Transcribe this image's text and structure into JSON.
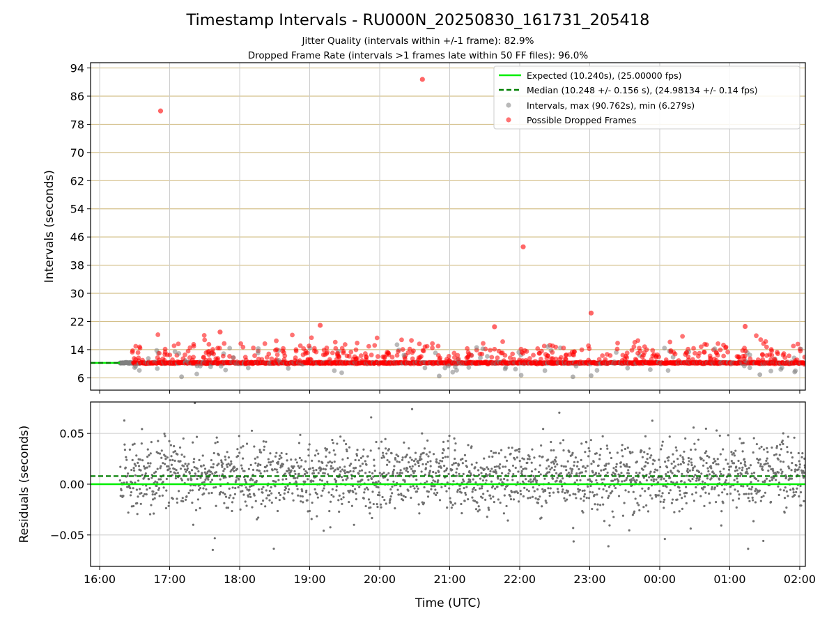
{
  "chart_data": {
    "type": "scatter",
    "title": "Timestamp Intervals - RU000N_20250830_161731_205418",
    "subtitle_lines": [
      "Jitter Quality (intervals within +/-1 frame): 82.9%",
      "Dropped Frame Rate (intervals >1 frames late within 50 FF files): 96.0%"
    ],
    "xlabel": "Time (UTC)",
    "x_tick_labels": [
      "16:00",
      "17:00",
      "18:00",
      "19:00",
      "20:00",
      "21:00",
      "22:00",
      "23:00",
      "00:00",
      "01:00",
      "02:00"
    ],
    "x_range_hours": [
      15.87,
      26.08
    ],
    "x_data_start_hours": 16.29,
    "colors": {
      "expected": "#00ee00",
      "median": "#007f00",
      "intervals": "#808080",
      "dropped": "#ff0000",
      "top_grid": "#d4c08a",
      "grid": "#cccccc"
    },
    "panels": {
      "intervals": {
        "ylabel": "Intervals (seconds)",
        "ylim": [
          2.5,
          95.5
        ],
        "y_ticks": [
          6,
          14,
          22,
          30,
          38,
          46,
          54,
          62,
          70,
          78,
          86,
          94
        ],
        "y_tick_labels": [
          "6",
          "14",
          "22",
          "30",
          "38",
          "46",
          "54",
          "62",
          "70",
          "78",
          "86",
          "94"
        ],
        "expected_value": 10.24,
        "median_value": 10.248,
        "legend_position": "upper right",
        "legend": [
          {
            "label": "Expected (10.240s), (25.00000 fps)",
            "marker": "line"
          },
          {
            "label": "Median (10.248 +/- 0.156 s), (24.98134 +/- 0.14 fps)",
            "marker": "dashed"
          },
          {
            "label": "Intervals, max (90.762s), min (6.279s)",
            "marker": "gray-dot"
          },
          {
            "label": "Possible Dropped Frames",
            "marker": "red-dot"
          }
        ],
        "notable_dropped_points": [
          {
            "t": 16.87,
            "v": 81.8
          },
          {
            "t": 20.61,
            "v": 90.76
          },
          {
            "t": 22.05,
            "v": 43.2
          },
          {
            "t": 23.02,
            "v": 24.4
          },
          {
            "t": 19.15,
            "v": 20.9
          },
          {
            "t": 21.64,
            "v": 20.5
          },
          {
            "t": 25.22,
            "v": 20.6
          },
          {
            "t": 17.72,
            "v": 19.0
          }
        ],
        "notable_low_points": [
          {
            "t": 17.17,
            "v": 6.3
          },
          {
            "t": 22.76,
            "v": 6.28
          },
          {
            "t": 23.02,
            "v": 6.6
          },
          {
            "t": 20.85,
            "v": 6.5
          },
          {
            "t": 25.43,
            "v": 6.9
          }
        ]
      },
      "residuals": {
        "ylabel": "Residuals (seconds)",
        "ylim": [
          -0.081,
          0.081
        ],
        "y_ticks": [
          -0.05,
          0.0,
          0.05
        ],
        "y_tick_labels": [
          "−0.05",
          "0.00",
          "0.05"
        ],
        "expected_value": 0.0,
        "median_value": 0.008,
        "spread_sd": 0.017
      }
    }
  }
}
